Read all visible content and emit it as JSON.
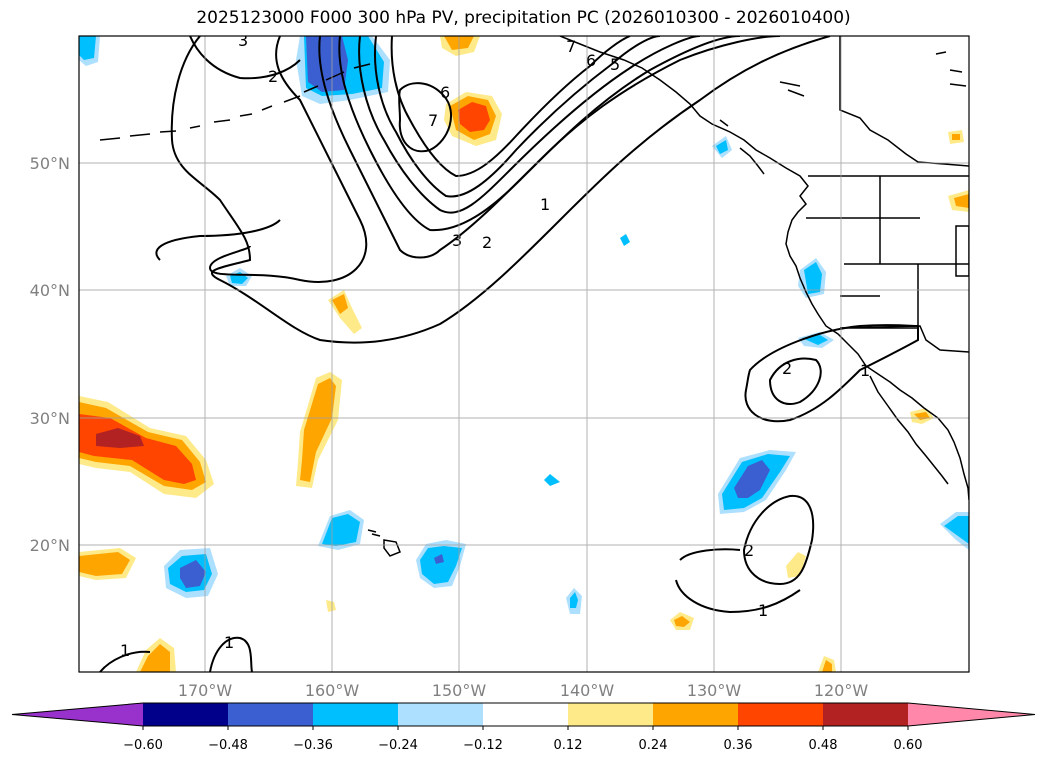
{
  "title": "2025123000 F000 300 hPa PV, precipitation PC (2026010300 - 2026010400)",
  "lat_labels": [
    "50°N",
    "40°N",
    "30°N",
    "20°N"
  ],
  "lon_labels": [
    "170°W",
    "160°W",
    "150°W",
    "140°W",
    "130°W",
    "120°W"
  ],
  "contour_labels": [
    "3",
    "2",
    "7",
    "6",
    "5",
    "7",
    "6",
    "3",
    "2",
    "1",
    "2",
    "2",
    "1",
    "1",
    "1",
    "1"
  ],
  "colorbar": {
    "colors": [
      "#9932CC",
      "#00008B",
      "#3B5FD0",
      "#00BFFF",
      "#ADDFFF",
      "#FFFFFF",
      "#FFEA8A",
      "#FFA500",
      "#FF4500",
      "#B22222",
      "#FF88AA"
    ],
    "ticks": [
      "−0.60",
      "−0.48",
      "−0.36",
      "−0.24",
      "−0.12",
      "0.12",
      "0.24",
      "0.36",
      "0.48",
      "0.60"
    ]
  }
}
